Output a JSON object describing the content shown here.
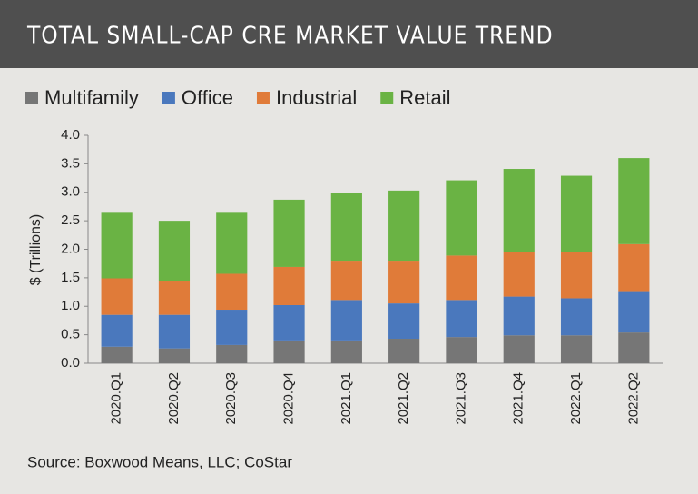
{
  "chart_data": {
    "type": "stacked_bar",
    "title": "TOTAL SMALL-CAP CRE MARKET VALUE TREND",
    "y_axis_label": "$ (Trillions)",
    "source": "Source: Boxwood Means, LLC; CoStar",
    "categories": [
      "2020.Q1",
      "2020.Q2",
      "2020.Q3",
      "2020.Q4",
      "2021.Q1",
      "2021.Q2",
      "2021.Q3",
      "2021.Q4",
      "2022.Q1",
      "2022.Q2"
    ],
    "series": [
      {
        "name": "Multifamily",
        "color": "#767676",
        "values": [
          0.29,
          0.26,
          0.32,
          0.4,
          0.4,
          0.43,
          0.46,
          0.49,
          0.49,
          0.54
        ]
      },
      {
        "name": "Office",
        "color": "#4a78bd",
        "values": [
          0.56,
          0.59,
          0.62,
          0.62,
          0.71,
          0.62,
          0.65,
          0.68,
          0.65,
          0.71
        ]
      },
      {
        "name": "Industrial",
        "color": "#e07b39",
        "values": [
          0.64,
          0.6,
          0.63,
          0.67,
          0.69,
          0.75,
          0.78,
          0.78,
          0.81,
          0.84
        ]
      },
      {
        "name": "Retail",
        "color": "#6ab344",
        "values": [
          1.15,
          1.05,
          1.07,
          1.18,
          1.19,
          1.23,
          1.32,
          1.46,
          1.34,
          1.51
        ]
      }
    ],
    "ylim": [
      0,
      4
    ],
    "yticks": [
      {
        "value": 0,
        "label": "0.0"
      },
      0.5,
      {
        "value": 1,
        "label": "1.0"
      },
      1.5,
      {
        "value": 2,
        "label": "2.0"
      },
      2.5,
      {
        "value": 3,
        "label": "3.0"
      },
      3.5,
      {
        "value": 4,
        "label": "4.0"
      }
    ],
    "grid": false,
    "legend": "top"
  }
}
